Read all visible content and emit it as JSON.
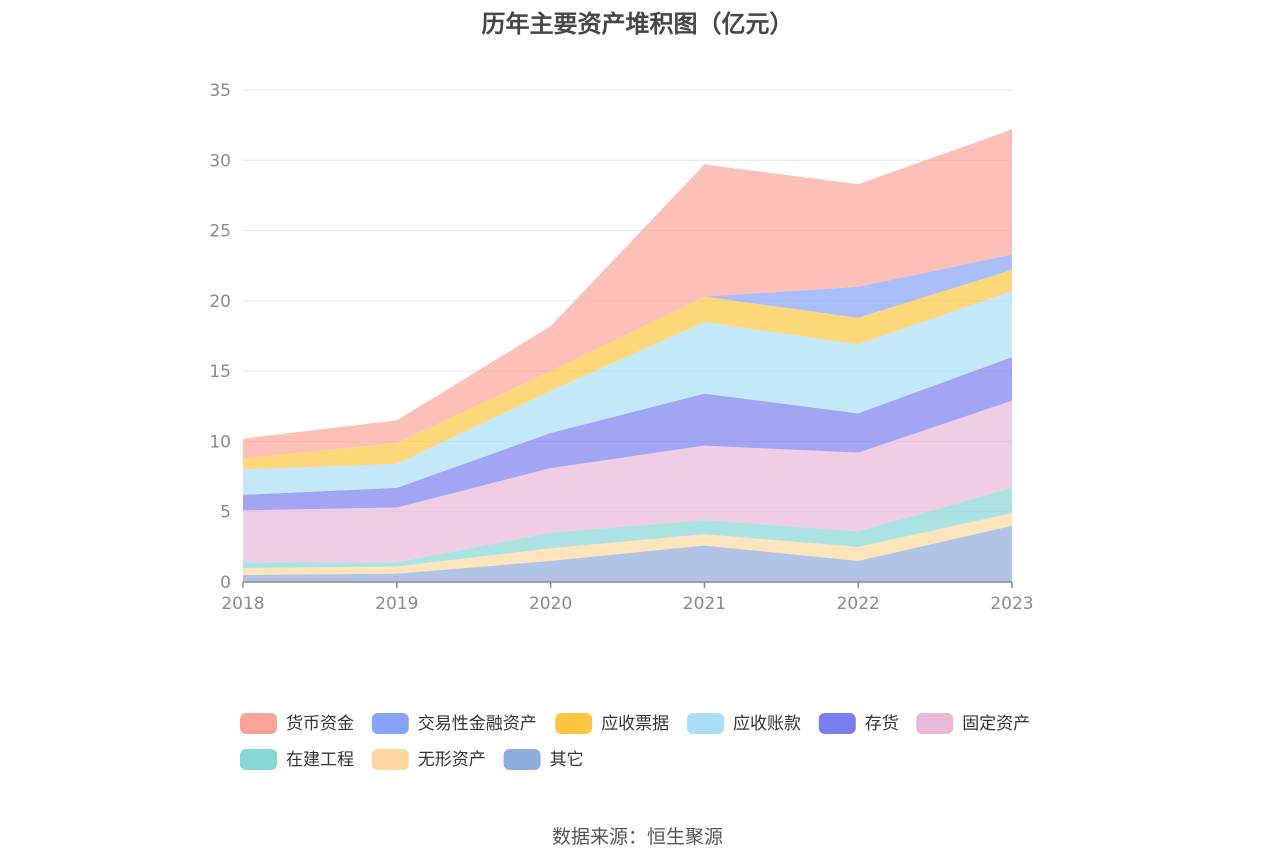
{
  "chart_data": {
    "type": "area",
    "stacked": true,
    "title": "历年主要资产堆积图（亿元）",
    "x": [
      "2018",
      "2019",
      "2020",
      "2021",
      "2022",
      "2023"
    ],
    "ylim": [
      0,
      35
    ],
    "yticks": [
      0,
      5,
      10,
      15,
      20,
      25,
      30,
      35
    ],
    "grid": true,
    "legend_position": "bottom",
    "series": [
      {
        "name": "其它",
        "color": "#8eaddb",
        "values": [
          0.5,
          0.6,
          1.5,
          2.6,
          1.5,
          4.0
        ]
      },
      {
        "name": "无形资产",
        "color": "#fdd89e",
        "values": [
          0.5,
          0.5,
          0.9,
          0.8,
          1.0,
          0.9
        ]
      },
      {
        "name": "在建工程",
        "color": "#87d6d6",
        "values": [
          0.4,
          0.3,
          1.1,
          1.0,
          1.1,
          1.8
        ]
      },
      {
        "name": "固定资产",
        "color": "#e8b8d8",
        "values": [
          3.7,
          3.9,
          4.6,
          5.3,
          5.6,
          6.2
        ]
      },
      {
        "name": "存货",
        "color": "#7b7ef0",
        "values": [
          1.1,
          1.4,
          2.5,
          3.7,
          2.8,
          3.1
        ]
      },
      {
        "name": "应收账款",
        "color": "#a9def8",
        "values": [
          1.8,
          1.7,
          3.0,
          5.1,
          4.9,
          4.7
        ]
      },
      {
        "name": "应收票据",
        "color": "#fbc741",
        "values": [
          0.8,
          1.5,
          1.4,
          1.8,
          1.9,
          1.5
        ]
      },
      {
        "name": "交易性金融资产",
        "color": "#86a4f7",
        "values": [
          0.0,
          0.0,
          0.0,
          0.0,
          2.2,
          1.1
        ]
      },
      {
        "name": "货币资金",
        "color": "#fba59a",
        "values": [
          1.4,
          1.6,
          3.2,
          9.4,
          7.3,
          8.9
        ]
      }
    ],
    "legend_order": [
      "货币资金",
      "交易性金融资产",
      "应收票据",
      "应收账款",
      "存货",
      "固定资产",
      "在建工程",
      "无形资产",
      "其它"
    ]
  },
  "source": "数据来源：恒生聚源"
}
